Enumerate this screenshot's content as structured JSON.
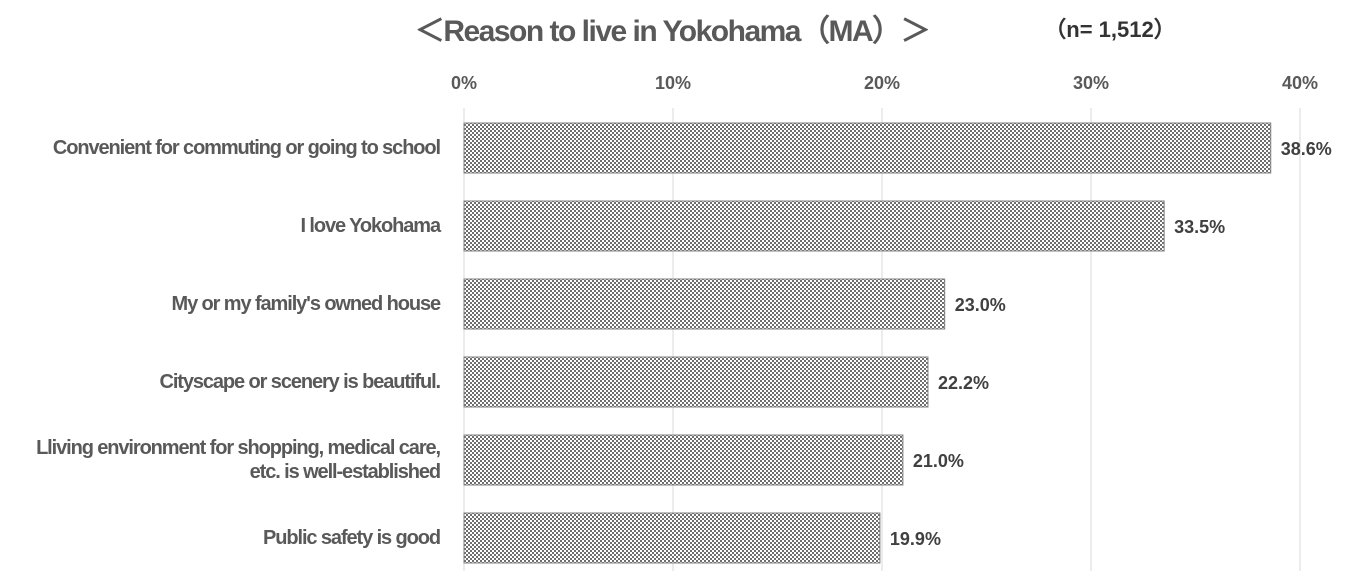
{
  "chart_data": {
    "type": "bar",
    "orientation": "horizontal",
    "title": "＜Reason to live in Yokohama（MA）＞",
    "subtitle": "（n= 1,512）",
    "categories": [
      "Convenient for commuting or going to school",
      "I love Yokohama",
      "My or my family's owned house",
      "Cityscape or scenery is beautiful.",
      "Lliving environment for shopping, medical care, etc. is well-established",
      "Public safety is good"
    ],
    "values": [
      38.6,
      33.5,
      23.0,
      22.2,
      21.0,
      19.9
    ],
    "value_labels": [
      "38.6%",
      "33.5%",
      "23.0%",
      "22.2%",
      "21.0%",
      "19.9%"
    ],
    "color": "#7f7f7f",
    "xlim": [
      0,
      40
    ],
    "xticks": [
      {
        "value": 0,
        "label": "0%"
      },
      {
        "value": 10,
        "label": "10%"
      },
      {
        "value": 20,
        "label": "20%"
      },
      {
        "value": 30,
        "label": "30%"
      },
      {
        "value": 40,
        "label": "40%"
      }
    ],
    "grid": true
  }
}
